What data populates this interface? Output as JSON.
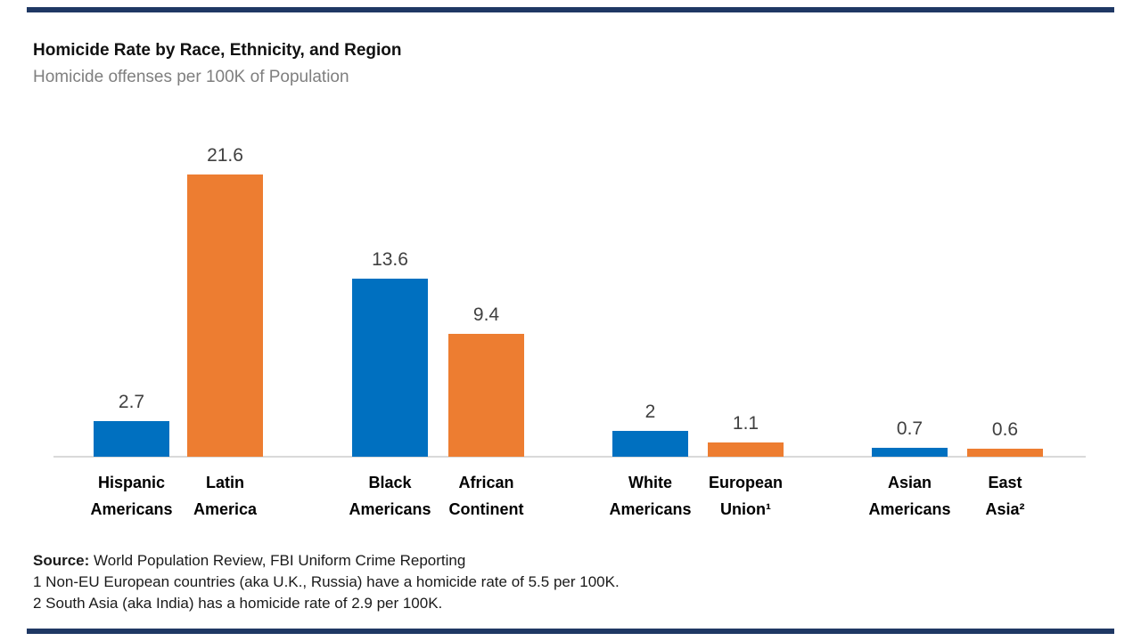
{
  "header": {
    "title": "Homicide Rate by Race, Ethnicity, and Region",
    "subtitle": "Homicide offenses per 100K of Population"
  },
  "chart_data": {
    "type": "bar",
    "title": "Homicide Rate by Race, Ethnicity, and Region",
    "subtitle": "Homicide offenses per 100K of Population",
    "ylabel": "Homicide offenses per 100K of Population",
    "ylim": [
      0,
      22
    ],
    "grid": false,
    "legend": "none",
    "categories": [
      "Hispanic Americans",
      "Latin America",
      "Black Americans",
      "African Continent",
      "White Americans",
      "European Union¹",
      "Asian Americans",
      "East Asia²"
    ],
    "values": [
      2.7,
      21.6,
      13.6,
      9.4,
      2,
      1.1,
      0.7,
      0.6
    ],
    "bars": [
      {
        "category": "Hispanic Americans",
        "label_lines": [
          "Hispanic",
          "Americans"
        ],
        "value": 2.7,
        "display": "2.7",
        "color": "#0070C0"
      },
      {
        "category": "Latin America",
        "label_lines": [
          "Latin",
          "America"
        ],
        "value": 21.6,
        "display": "21.6",
        "color": "#ED7D31"
      },
      {
        "category": "Black Americans",
        "label_lines": [
          "Black",
          "Americans"
        ],
        "value": 13.6,
        "display": "13.6",
        "color": "#0070C0"
      },
      {
        "category": "African Continent",
        "label_lines": [
          "African",
          "Continent"
        ],
        "value": 9.4,
        "display": "9.4",
        "color": "#ED7D31"
      },
      {
        "category": "White Americans",
        "label_lines": [
          "White",
          "Americans"
        ],
        "value": 2,
        "display": "2",
        "color": "#0070C0"
      },
      {
        "category": "European Union¹",
        "label_lines": [
          "European",
          "Union¹"
        ],
        "value": 1.1,
        "display": "1.1",
        "color": "#ED7D31"
      },
      {
        "category": "Asian Americans",
        "label_lines": [
          "Asian",
          "Americans"
        ],
        "value": 0.7,
        "display": "0.7",
        "color": "#0070C0"
      },
      {
        "category": "East Asia²",
        "label_lines": [
          "East",
          "Asia²"
        ],
        "value": 0.6,
        "display": "0.6",
        "color": "#ED7D31"
      }
    ],
    "colors": {
      "us_series": "#0070C0",
      "region_series": "#ED7D31",
      "axis_line": "#D9D9D9",
      "value_label": "#404040"
    }
  },
  "footnotes": {
    "source_label": "Source:",
    "source_text": " World Population Review, FBI Uniform Crime Reporting",
    "note1": "1 Non-EU European countries (aka U.K., Russia) have a homicide rate of 5.5 per 100K.",
    "note2": "2 South Asia (aka India) has a homicide rate of 2.9 per 100K."
  },
  "decor": {
    "accent_bar_color": "#1F3864"
  }
}
